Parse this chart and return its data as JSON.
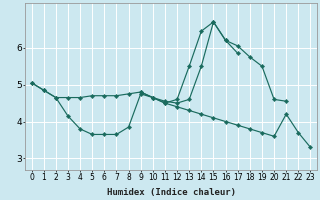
{
  "xlabel": "Humidex (Indice chaleur)",
  "bg_color": "#cce8f0",
  "line_color": "#1a6b5e",
  "grid_color": "#ffffff",
  "xlim": [
    -0.5,
    23.5
  ],
  "ylim": [
    2.7,
    7.2
  ],
  "yticks": [
    3,
    4,
    5,
    6
  ],
  "xticks": [
    0,
    1,
    2,
    3,
    4,
    5,
    6,
    7,
    8,
    9,
    10,
    11,
    12,
    13,
    14,
    15,
    16,
    17,
    18,
    19,
    20,
    21,
    22,
    23
  ],
  "line1_x": [
    0,
    1,
    2,
    3,
    4,
    5,
    6,
    7,
    8,
    9,
    10,
    11,
    12,
    13,
    14,
    15,
    16,
    17,
    18,
    19,
    20,
    21
  ],
  "line1_y": [
    5.05,
    4.85,
    4.65,
    4.65,
    4.65,
    4.7,
    4.7,
    4.7,
    4.75,
    4.8,
    4.65,
    4.5,
    4.6,
    5.5,
    6.45,
    6.7,
    6.2,
    6.05,
    5.75,
    5.5,
    4.6,
    4.55
  ],
  "line2_x": [
    0,
    1,
    2,
    3,
    4,
    5,
    6,
    7,
    8,
    9,
    10,
    11,
    12,
    13,
    14,
    15,
    16,
    17
  ],
  "line2_y": [
    5.05,
    4.85,
    4.65,
    4.15,
    3.8,
    3.65,
    3.65,
    3.65,
    3.85,
    4.75,
    4.65,
    4.55,
    4.5,
    4.6,
    5.5,
    6.7,
    6.2,
    5.85
  ],
  "line3_x": [
    9,
    10,
    11,
    12,
    13,
    14,
    15,
    16,
    17,
    18,
    19,
    20,
    21,
    22,
    23
  ],
  "line3_y": [
    4.8,
    4.65,
    4.5,
    4.4,
    4.3,
    4.2,
    4.1,
    4.0,
    3.9,
    3.8,
    3.7,
    3.6,
    4.2,
    3.7,
    3.3
  ],
  "tick_fontsize": 5.5,
  "xlabel_fontsize": 6.5
}
